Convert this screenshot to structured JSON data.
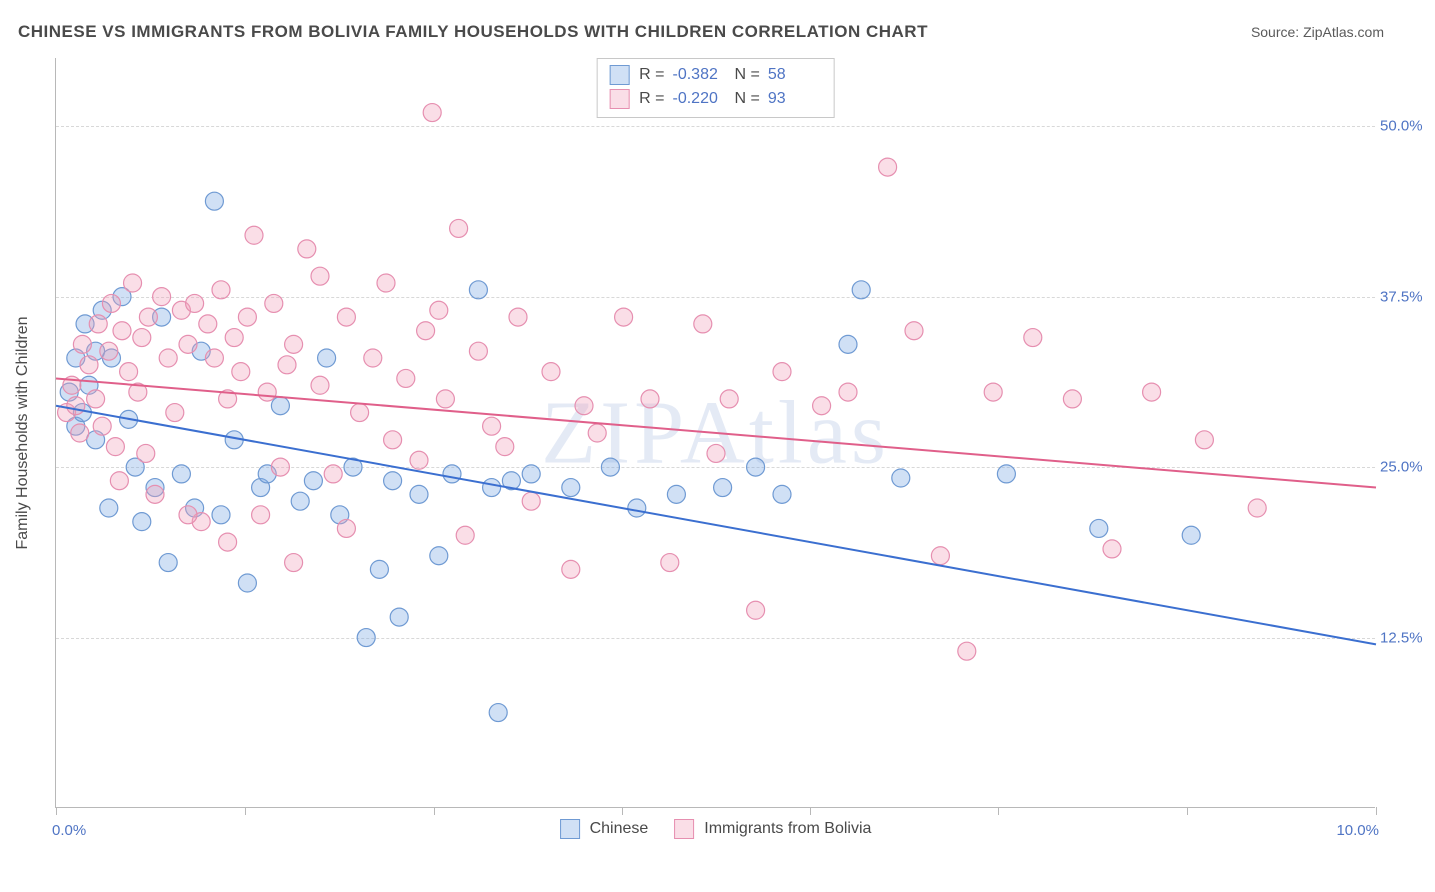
{
  "title": "CHINESE VS IMMIGRANTS FROM BOLIVIA FAMILY HOUSEHOLDS WITH CHILDREN CORRELATION CHART",
  "source_label": "Source: ",
  "source_value": "ZipAtlas.com",
  "watermark": "ZIPAtlas",
  "yaxis_title": "Family Households with Children",
  "chart": {
    "type": "scatter",
    "background_color": "#ffffff",
    "grid_color": "#d8d8d8",
    "axis_color": "#b8b8b8",
    "tick_label_color": "#4f74c4",
    "text_color": "#4a4a4a",
    "xlim": [
      0,
      10
    ],
    "ylim": [
      0,
      55
    ],
    "x_tick_positions": [
      0,
      1.43,
      2.86,
      4.29,
      5.71,
      7.14,
      8.57,
      10
    ],
    "x_tick_labels_shown": {
      "0": "0.0%",
      "10": "10.0%"
    },
    "y_gridlines": [
      12.5,
      25.0,
      37.5,
      50.0
    ],
    "y_tick_labels": [
      "12.5%",
      "25.0%",
      "37.5%",
      "50.0%"
    ],
    "marker_radius": 9,
    "marker_stroke_width": 1.2,
    "trend_line_width": 2,
    "label_fontsize": 15,
    "title_fontsize": 17
  },
  "series": [
    {
      "name": "Chinese",
      "fill": "rgba(120,165,225,0.35)",
      "stroke": "#6f9ad3",
      "line_color": "#3b6fd0",
      "R": "-0.382",
      "N": "58",
      "trend": {
        "x1": 0,
        "y1": 29.5,
        "x2": 10,
        "y2": 12.0
      },
      "points": [
        [
          0.1,
          30.5
        ],
        [
          0.15,
          28.0
        ],
        [
          0.15,
          33.0
        ],
        [
          0.2,
          29.0
        ],
        [
          0.22,
          35.5
        ],
        [
          0.25,
          31.0
        ],
        [
          0.3,
          27.0
        ],
        [
          0.3,
          33.5
        ],
        [
          0.35,
          36.5
        ],
        [
          0.4,
          22.0
        ],
        [
          0.42,
          33.0
        ],
        [
          0.5,
          37.5
        ],
        [
          0.55,
          28.5
        ],
        [
          0.6,
          25.0
        ],
        [
          0.65,
          21.0
        ],
        [
          0.75,
          23.5
        ],
        [
          0.8,
          36.0
        ],
        [
          0.85,
          18.0
        ],
        [
          0.95,
          24.5
        ],
        [
          1.05,
          22.0
        ],
        [
          1.1,
          33.5
        ],
        [
          1.2,
          44.5
        ],
        [
          1.25,
          21.5
        ],
        [
          1.35,
          27.0
        ],
        [
          1.45,
          16.5
        ],
        [
          1.55,
          23.5
        ],
        [
          1.6,
          24.5
        ],
        [
          1.7,
          29.5
        ],
        [
          1.85,
          22.5
        ],
        [
          1.95,
          24.0
        ],
        [
          2.05,
          33.0
        ],
        [
          2.15,
          21.5
        ],
        [
          2.25,
          25.0
        ],
        [
          2.35,
          12.5
        ],
        [
          2.45,
          17.5
        ],
        [
          2.55,
          24.0
        ],
        [
          2.6,
          14.0
        ],
        [
          2.75,
          23.0
        ],
        [
          2.9,
          18.5
        ],
        [
          3.0,
          24.5
        ],
        [
          3.2,
          38.0
        ],
        [
          3.3,
          23.5
        ],
        [
          3.35,
          7.0
        ],
        [
          3.45,
          24.0
        ],
        [
          3.6,
          24.5
        ],
        [
          3.9,
          23.5
        ],
        [
          4.2,
          25.0
        ],
        [
          4.4,
          22.0
        ],
        [
          4.7,
          23.0
        ],
        [
          5.05,
          23.5
        ],
        [
          5.3,
          25.0
        ],
        [
          5.5,
          23.0
        ],
        [
          6.0,
          34.0
        ],
        [
          6.4,
          24.2
        ],
        [
          7.2,
          24.5
        ],
        [
          7.9,
          20.5
        ],
        [
          8.6,
          20.0
        ],
        [
          6.1,
          38.0
        ]
      ]
    },
    {
      "name": "Immigrants from Bolivia",
      "fill": "rgba(240,160,185,0.35)",
      "stroke": "#e68fb0",
      "line_color": "#e05f8a",
      "R": "-0.220",
      "N": "93",
      "trend": {
        "x1": 0,
        "y1": 31.5,
        "x2": 10,
        "y2": 23.5
      },
      "points": [
        [
          0.08,
          29.0
        ],
        [
          0.12,
          31.0
        ],
        [
          0.15,
          29.5
        ],
        [
          0.18,
          27.5
        ],
        [
          0.2,
          34.0
        ],
        [
          0.25,
          32.5
        ],
        [
          0.3,
          30.0
        ],
        [
          0.32,
          35.5
        ],
        [
          0.35,
          28.0
        ],
        [
          0.4,
          33.5
        ],
        [
          0.42,
          37.0
        ],
        [
          0.48,
          24.0
        ],
        [
          0.5,
          35.0
        ],
        [
          0.55,
          32.0
        ],
        [
          0.58,
          38.5
        ],
        [
          0.62,
          30.5
        ],
        [
          0.65,
          34.5
        ],
        [
          0.7,
          36.0
        ],
        [
          0.75,
          23.0
        ],
        [
          0.8,
          37.5
        ],
        [
          0.85,
          33.0
        ],
        [
          0.9,
          29.0
        ],
        [
          0.95,
          36.5
        ],
        [
          1.0,
          34.0
        ],
        [
          1.05,
          37.0
        ],
        [
          1.1,
          21.0
        ],
        [
          1.15,
          35.5
        ],
        [
          1.2,
          33.0
        ],
        [
          1.25,
          38.0
        ],
        [
          1.3,
          30.0
        ],
        [
          1.35,
          34.5
        ],
        [
          1.4,
          32.0
        ],
        [
          1.45,
          36.0
        ],
        [
          1.5,
          42.0
        ],
        [
          1.55,
          21.5
        ],
        [
          1.6,
          30.5
        ],
        [
          1.65,
          37.0
        ],
        [
          1.7,
          25.0
        ],
        [
          1.75,
          32.5
        ],
        [
          1.8,
          34.0
        ],
        [
          1.9,
          41.0
        ],
        [
          2.0,
          39.0
        ],
        [
          2.0,
          31.0
        ],
        [
          2.1,
          24.5
        ],
        [
          2.2,
          36.0
        ],
        [
          2.3,
          29.0
        ],
        [
          2.4,
          33.0
        ],
        [
          2.5,
          38.5
        ],
        [
          2.55,
          27.0
        ],
        [
          2.65,
          31.5
        ],
        [
          2.75,
          25.5
        ],
        [
          2.8,
          35.0
        ],
        [
          2.85,
          51.0
        ],
        [
          2.95,
          30.0
        ],
        [
          3.05,
          42.5
        ],
        [
          3.1,
          20.0
        ],
        [
          3.2,
          33.5
        ],
        [
          3.3,
          28.0
        ],
        [
          3.4,
          26.5
        ],
        [
          3.5,
          36.0
        ],
        [
          3.6,
          22.5
        ],
        [
          3.75,
          32.0
        ],
        [
          3.9,
          17.5
        ],
        [
          4.1,
          27.5
        ],
        [
          4.3,
          36.0
        ],
        [
          4.5,
          30.0
        ],
        [
          4.65,
          18.0
        ],
        [
          4.9,
          35.5
        ],
        [
          5.1,
          30.0
        ],
        [
          5.3,
          14.5
        ],
        [
          5.5,
          32.0
        ],
        [
          5.8,
          29.5
        ],
        [
          6.0,
          30.5
        ],
        [
          6.3,
          47.0
        ],
        [
          6.5,
          35.0
        ],
        [
          6.7,
          18.5
        ],
        [
          6.9,
          11.5
        ],
        [
          7.1,
          30.5
        ],
        [
          7.4,
          34.5
        ],
        [
          7.7,
          30.0
        ],
        [
          8.0,
          19.0
        ],
        [
          8.3,
          30.5
        ],
        [
          8.7,
          27.0
        ],
        [
          9.1,
          22.0
        ],
        [
          1.0,
          21.5
        ],
        [
          1.3,
          19.5
        ],
        [
          1.8,
          18.0
        ],
        [
          2.2,
          20.5
        ],
        [
          4.0,
          29.5
        ],
        [
          5.0,
          26.0
        ],
        [
          0.45,
          26.5
        ],
        [
          0.68,
          26.0
        ],
        [
          2.9,
          36.5
        ]
      ]
    }
  ],
  "legend": {
    "stats_prefix_R": "R = ",
    "stats_prefix_N": "N = "
  }
}
